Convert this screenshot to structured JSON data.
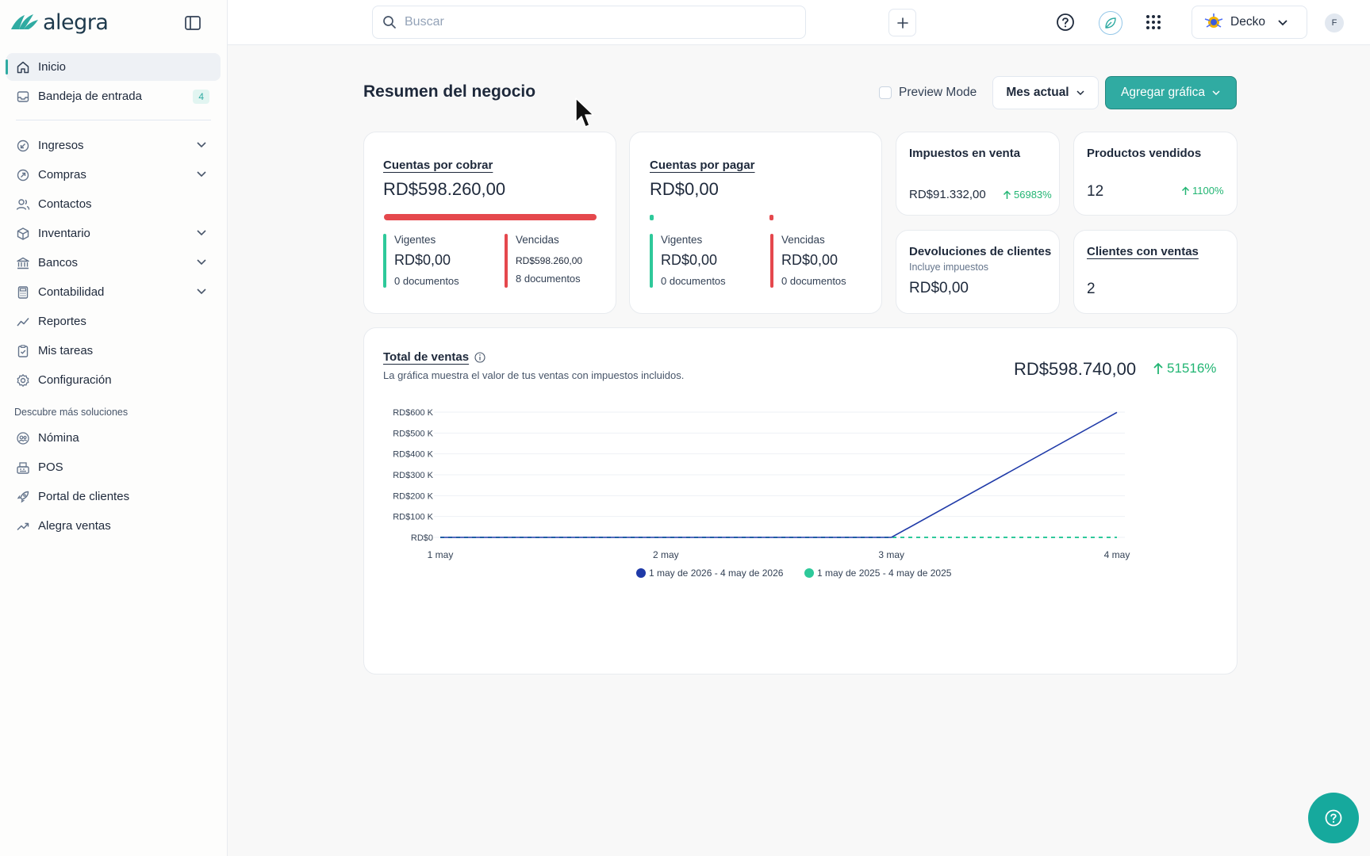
{
  "app": {
    "brand": "alegra"
  },
  "topbar": {
    "search_placeholder": "Buscar",
    "company_name": "Decko",
    "user_initial": "F"
  },
  "sidebar": {
    "items": [
      {
        "label": "Inicio",
        "icon": "home-icon",
        "active": true
      },
      {
        "label": "Bandeja de entrada",
        "icon": "inbox-icon",
        "badge": "4"
      },
      {
        "label": "Ingresos",
        "icon": "income-icon",
        "expandable": true
      },
      {
        "label": "Compras",
        "icon": "purchases-icon",
        "expandable": true
      },
      {
        "label": "Contactos",
        "icon": "contacts-icon"
      },
      {
        "label": "Inventario",
        "icon": "box-icon",
        "expandable": true
      },
      {
        "label": "Bancos",
        "icon": "bank-icon",
        "expandable": true
      },
      {
        "label": "Contabilidad",
        "icon": "calculator-icon",
        "expandable": true
      },
      {
        "label": "Reportes",
        "icon": "chart-line-icon"
      },
      {
        "label": "Mis tareas",
        "icon": "clipboard-icon"
      },
      {
        "label": "Configuración",
        "icon": "gear-icon"
      }
    ],
    "section_title": "Descubre más soluciones",
    "extra_items": [
      {
        "label": "Nómina",
        "icon": "payroll-icon"
      },
      {
        "label": "POS",
        "icon": "pos-icon"
      },
      {
        "label": "Portal de clientes",
        "icon": "rocket-icon"
      },
      {
        "label": "Alegra ventas",
        "icon": "trend-icon"
      }
    ]
  },
  "header": {
    "title": "Resumen del negocio",
    "preview_mode_label": "Preview Mode",
    "period_label": "Mes actual",
    "add_chart_label": "Agregar gráfica"
  },
  "cards": {
    "receivable": {
      "title": "Cuentas por cobrar",
      "amount": "RD$598.260,00",
      "current_label": "Vigentes",
      "current_amount": "RD$0,00",
      "current_docs": "0 documentos",
      "overdue_label": "Vencidas",
      "overdue_amount": "RD$598.260,00",
      "overdue_docs": "8 documentos",
      "overdue_fraction": 1.0
    },
    "payable": {
      "title": "Cuentas por pagar",
      "amount": "RD$0,00",
      "current_label": "Vigentes",
      "current_amount": "RD$0,00",
      "current_docs": "0 documentos",
      "overdue_label": "Vencidas",
      "overdue_amount": "RD$0,00",
      "overdue_docs": "0 documentos"
    },
    "sales_tax": {
      "title": "Impuestos en venta",
      "amount": "RD$91.332,00",
      "change": "56983%"
    },
    "products_sold": {
      "title": "Productos vendidos",
      "value": "12",
      "change": "1100%"
    },
    "returns": {
      "title": "Devoluciones de clientes",
      "subtitle": "Incluye impuestos",
      "amount": "RD$0,00"
    },
    "clients": {
      "title": "Clientes con ventas",
      "value": "2"
    }
  },
  "sales_panel": {
    "title": "Total de ventas",
    "description": "La gráfica muestra el valor de tus ventas con impuestos incluidos.",
    "total": "RD$598.740,00",
    "change": "51516%"
  },
  "colors": {
    "accent": "#30aba2",
    "danger": "#e5484d",
    "success": "#22b573",
    "series_current": "#1f3aa8",
    "series_previous": "#2ec99a"
  },
  "chart_data": {
    "type": "line",
    "categories": [
      "1 may",
      "2 may",
      "3 may",
      "4 may"
    ],
    "series": [
      {
        "name": "1 may de 2026 - 4 may de 2026",
        "values": [
          0,
          0,
          0,
          598740
        ],
        "style": "solid"
      },
      {
        "name": "1 may de 2025 - 4 may de 2025",
        "values": [
          0,
          0,
          0,
          0
        ],
        "style": "dashed"
      }
    ],
    "yticks": [
      {
        "value": 0,
        "label": "RD$0"
      },
      {
        "value": 100000,
        "label": "RD$100 K"
      },
      {
        "value": 200000,
        "label": "RD$200 K"
      },
      {
        "value": 300000,
        "label": "RD$300 K"
      },
      {
        "value": 400000,
        "label": "RD$400 K"
      },
      {
        "value": 500000,
        "label": "RD$500 K"
      },
      {
        "value": 600000,
        "label": "RD$600 K"
      }
    ],
    "ylim": [
      0,
      600000
    ],
    "grid": true,
    "legend_position": "bottom-center"
  }
}
